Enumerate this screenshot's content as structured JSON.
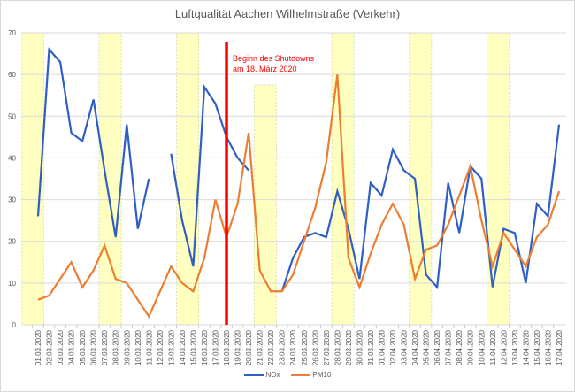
{
  "chart_data": {
    "type": "line",
    "title": "Luftqualität Aachen Wilhelmstraße (Verkehr)",
    "xlabel": "",
    "ylabel": "",
    "ylim": [
      0,
      70
    ],
    "yticks": [
      0,
      10,
      20,
      30,
      40,
      50,
      60,
      70
    ],
    "grid": true,
    "legend_position": "bottom",
    "categories": [
      "01.03.2020",
      "02.03.2020",
      "03.03.2020",
      "04.03.2020",
      "05.03.2020",
      "06.03.2020",
      "07.03.2020",
      "08.03.2020",
      "09.03.2020",
      "10.03.2020",
      "11.03.2020",
      "12.03.2020",
      "13.03.2020",
      "14.03.2020",
      "15.03.2020",
      "16.03.2020",
      "17.03.2020",
      "18.03.2020",
      "19.03.2020",
      "20.03.2020",
      "21.03.2020",
      "22.03.2020",
      "23.03.2020",
      "24.03.2020",
      "25.03.2020",
      "26.03.2020",
      "27.03.2020",
      "28.03.2020",
      "29.03.2020",
      "30.03.2020",
      "31.03.2020",
      "01.04.2020",
      "02.04.2020",
      "03.04.2020",
      "04.04.2020",
      "05.04.2020",
      "06.04.2020",
      "07.04.2020",
      "08.04.2020",
      "09.04.2020",
      "10.04.2020",
      "11.04.2020",
      "12.04.2020",
      "13.04.2020",
      "14.04.2020",
      "15.04.2020",
      "16.04.2020",
      "17.04.2020"
    ],
    "series": [
      {
        "name": "NOx",
        "color": "#2f5fc4",
        "values": [
          26,
          66,
          63,
          46,
          44,
          54,
          37,
          21,
          48,
          23,
          35,
          null,
          41,
          25,
          14,
          57,
          53,
          45,
          40,
          37,
          null,
          null,
          8,
          16,
          21,
          22,
          21,
          32,
          23,
          11,
          34,
          31,
          42,
          37,
          35,
          12,
          9,
          34,
          22,
          38,
          35,
          9,
          23,
          22,
          10,
          29,
          26,
          48
        ]
      },
      {
        "name": "PM10",
        "color": "#ed7d31",
        "values": [
          6,
          7,
          11,
          15,
          9,
          13,
          19,
          11,
          10,
          6,
          2,
          8,
          14,
          10,
          8,
          16,
          30,
          21,
          29,
          46,
          13,
          8,
          8,
          12,
          20,
          28,
          39,
          60,
          16,
          9,
          17,
          24,
          29,
          24,
          11,
          18,
          19,
          24,
          31,
          38,
          25,
          14,
          22,
          18,
          14,
          21,
          24,
          32
        ]
      }
    ],
    "weekend_bands": [
      {
        "from": "01.03.2020",
        "to": "01.03.2020"
      },
      {
        "from": "07.03.2020",
        "to": "08.03.2020"
      },
      {
        "from": "14.03.2020",
        "to": "15.03.2020"
      },
      {
        "from": "21.03.2020",
        "to": "22.03.2020"
      },
      {
        "from": "28.03.2020",
        "to": "29.03.2020"
      },
      {
        "from": "04.04.2020",
        "to": "05.04.2020"
      },
      {
        "from": "11.04.2020",
        "to": "12.04.2020"
      }
    ],
    "annotation": {
      "text_line1": "Beginn des Shutdowns",
      "text_line2": "am 18. März 2020",
      "x": "18.03.2020",
      "color": "#ff0000"
    }
  },
  "legend": {
    "nox_label": "NOx",
    "pm10_label": "PM10"
  }
}
